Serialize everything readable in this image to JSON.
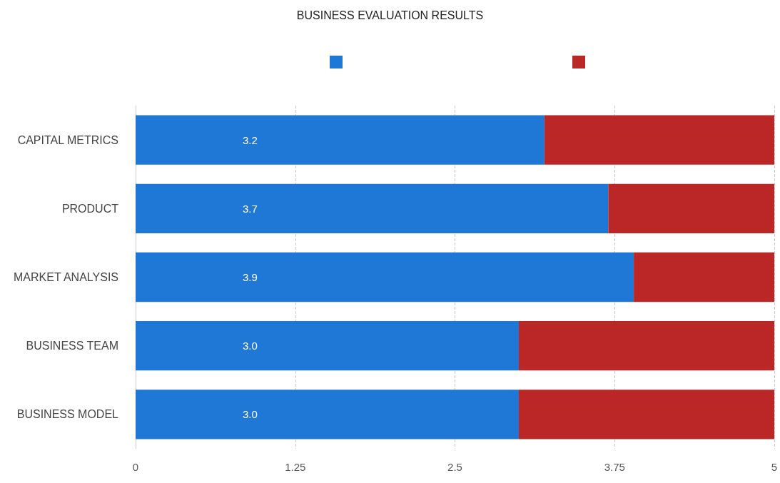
{
  "chart_data": {
    "type": "bar",
    "title": "BUSINESS EVALUATION RESULTS",
    "orientation": "horizontal",
    "stacked": true,
    "categories": [
      "CAPITAL METRICS",
      "PRODUCT",
      "MARKET ANALYSIS",
      "BUSINESS TEAM",
      "BUSINESS MODEL"
    ],
    "series": [
      {
        "color": "#1f77d6",
        "values": [
          3.2,
          3.7,
          3.9,
          3.0,
          3.0
        ],
        "value_labels": [
          "3.2",
          "3.7",
          "3.9",
          "3.0",
          "3.0"
        ]
      },
      {
        "color": "#bb2727",
        "values": [
          1.8,
          1.3,
          1.1,
          2.0,
          2.0
        ]
      }
    ],
    "xlim": [
      0,
      5
    ],
    "xticks": [
      0,
      1.25,
      2.5,
      3.75,
      5
    ],
    "grid": "x"
  }
}
